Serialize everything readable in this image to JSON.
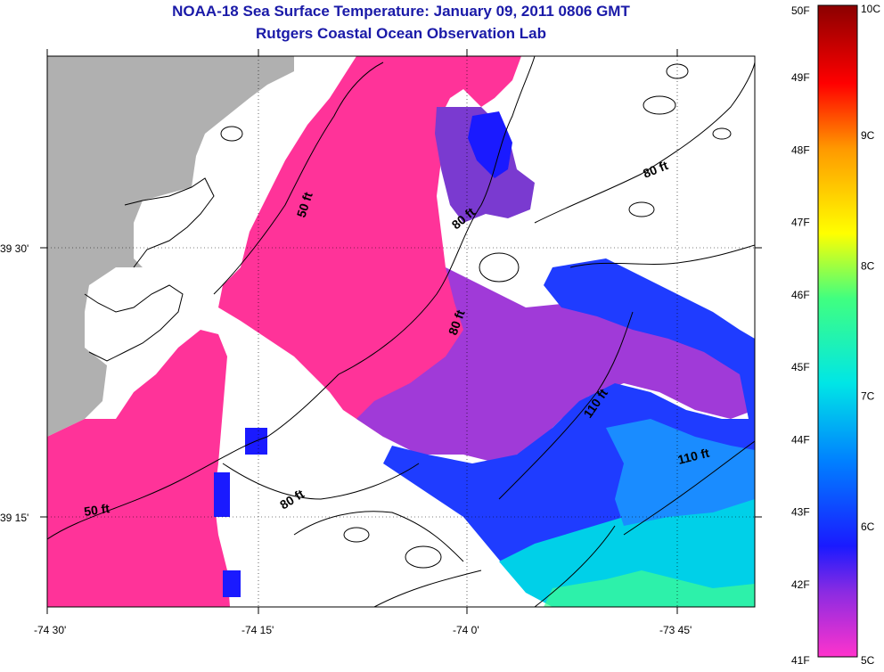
{
  "title": "NOAA-18 Sea Surface Temperature:  January 09, 2011 0806 GMT",
  "subtitle": "Rutgers Coastal Ocean Observation Lab",
  "x_ticks": [
    "-74 30'",
    "-74 15'",
    "-74 0'",
    "-73 45'"
  ],
  "y_ticks": [
    "39 30'",
    "39 15'"
  ],
  "depth_labels": [
    "50 ft",
    "50 ft",
    "80 ft",
    "80 ft",
    "80 ft",
    "80 ft",
    "110 ft",
    "110 ft"
  ],
  "colorbar": {
    "fahrenheit": [
      "50F",
      "49F",
      "48F",
      "47F",
      "46F",
      "45F",
      "44F",
      "43F",
      "42F",
      "41F"
    ],
    "celsius": [
      "10C",
      "9C",
      "8C",
      "7C",
      "6C",
      "5C"
    ],
    "range_f": [
      41,
      50
    ],
    "range_c": [
      5,
      10
    ]
  },
  "colors": {
    "land": "#b0b0b0",
    "cold_pink": "#ff3399",
    "purple": "#8030d0",
    "blue": "#1a1aff",
    "cyan": "#00e6e6",
    "title": "#1a1aa8"
  }
}
